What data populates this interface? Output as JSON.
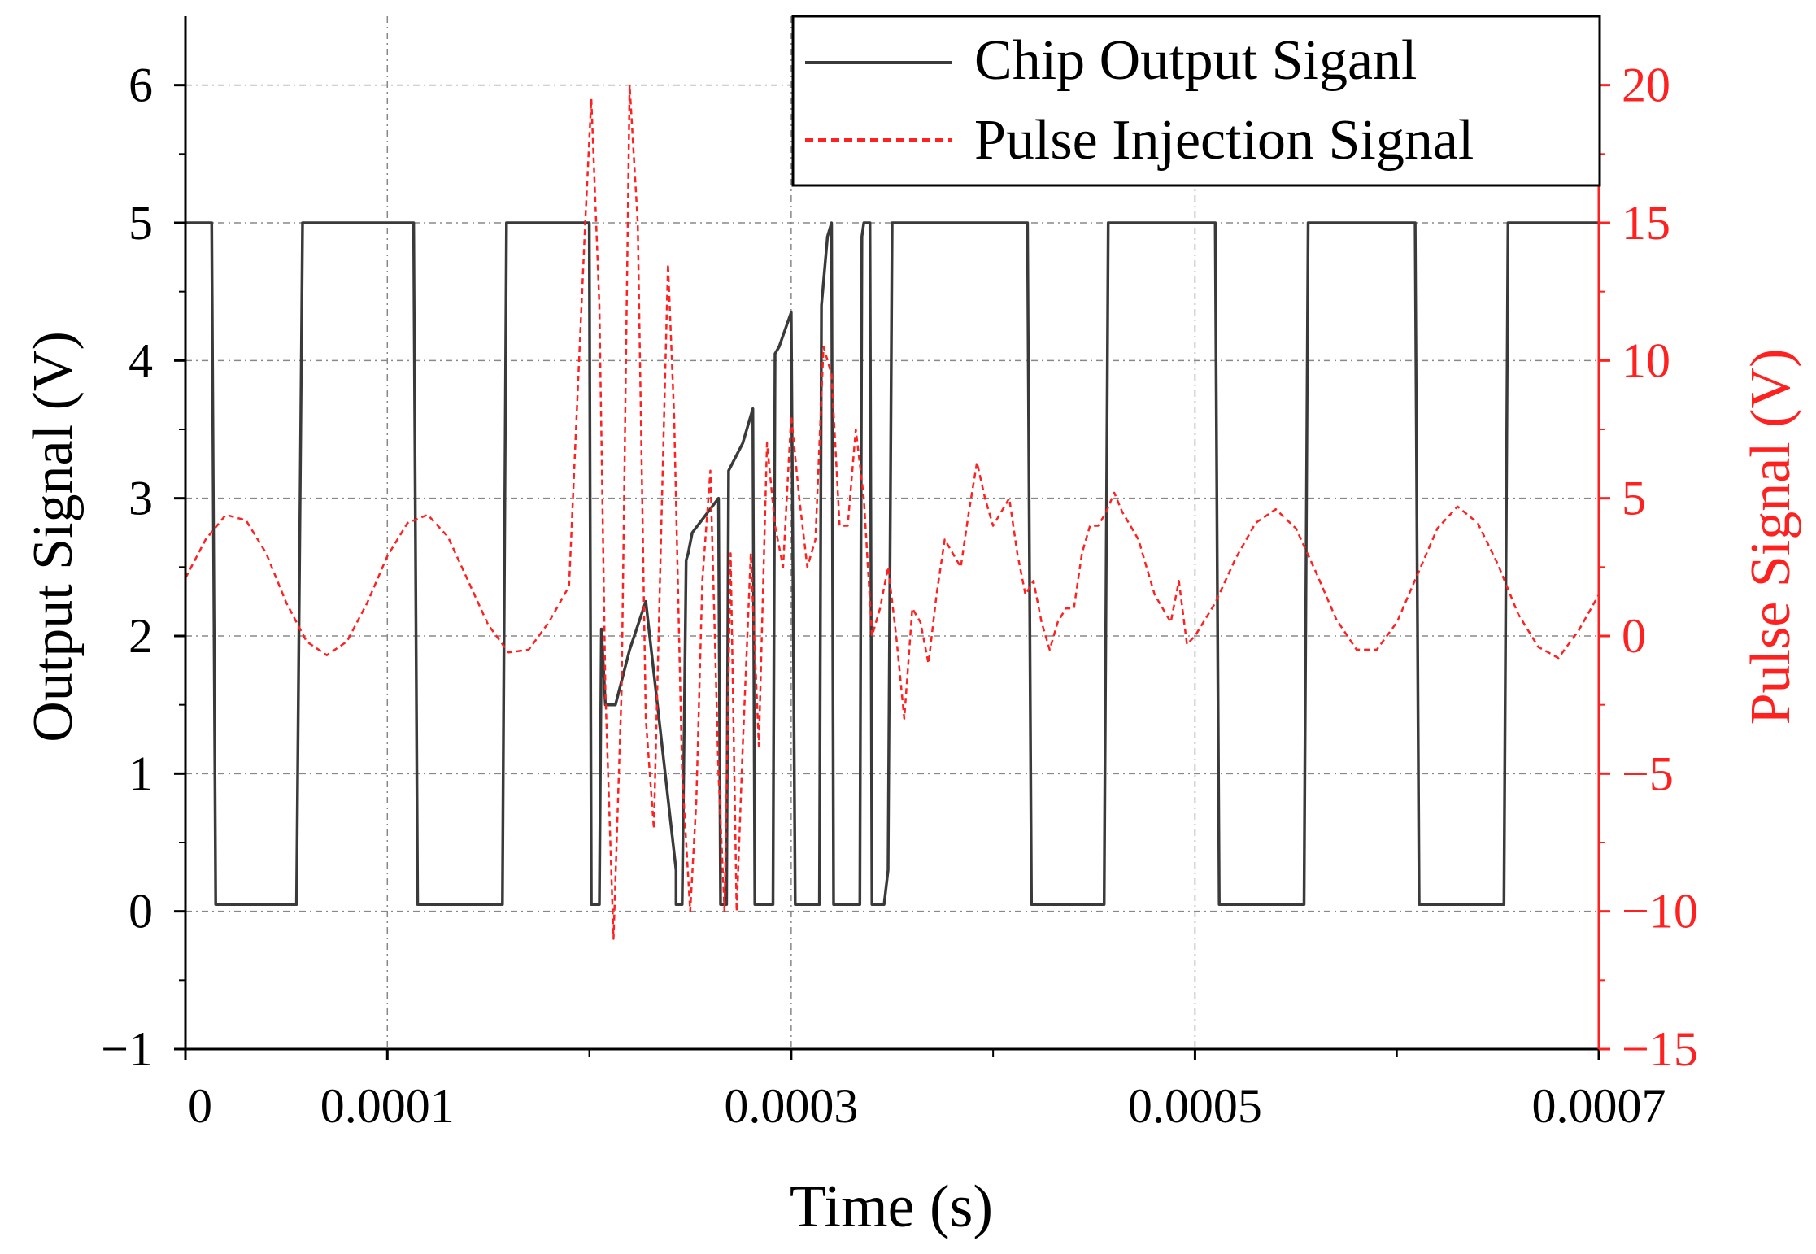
{
  "chart_data": {
    "type": "line",
    "title": "",
    "xlabel": "Time (s)",
    "ylabel_left": "Output Signal (V)",
    "ylabel_right": "Pulse Signal (V)",
    "xlim": [
      0,
      0.0007
    ],
    "ylim_left": [
      -1,
      6.5
    ],
    "ylim_right": [
      -15,
      22.5
    ],
    "x_ticks": [
      0,
      0.0001,
      0.0003,
      0.0005,
      0.0007
    ],
    "x_tick_labels": [
      "0",
      "0.0001",
      "0.0003",
      "0.0005",
      "0.0007"
    ],
    "x_minor_ticks": [
      0.0002,
      0.0004,
      0.0006
    ],
    "y_left_ticks": [
      -1,
      0,
      1,
      2,
      3,
      4,
      5,
      6
    ],
    "y_left_tick_labels": [
      "−1",
      "0",
      "1",
      "2",
      "3",
      "4",
      "5",
      "6"
    ],
    "y_right_ticks": [
      -15,
      -10,
      -5,
      0,
      5,
      10,
      15,
      20
    ],
    "y_right_tick_labels": [
      "−15",
      "−10",
      "−5",
      "0",
      "5",
      "10",
      "15",
      "20"
    ],
    "grid": true,
    "legend_position": "top-right",
    "colors": {
      "left_axis": "#000000",
      "right_axis": "#ff2020",
      "output_line": "#3a3a3a",
      "pulse_line": "#ff2020",
      "grid": "#888888"
    },
    "series": [
      {
        "name": "Chip Output Siganl",
        "axis": "left",
        "style": "solid",
        "x": [
          0,
          1.3e-05,
          1.5e-05,
          5.5e-05,
          5.8e-05,
          0.000113,
          0.000115,
          0.000157,
          0.000159,
          0.0002,
          0.000201,
          0.000205,
          0.000206,
          0.000208,
          0.00021,
          0.000213,
          0.00022,
          0.000228,
          0.000243,
          0.000243,
          0.000246,
          0.000248,
          0.000249,
          0.000251,
          0.000264,
          0.000265,
          0.000268,
          0.000269,
          0.000276,
          0.000281,
          0.000282,
          0.000284,
          0.000291,
          0.000292,
          0.000294,
          0.0003,
          0.000302,
          0.000303,
          0.000314,
          0.000315,
          0.000318,
          0.00032,
          0.000321,
          0.000334,
          0.000335,
          0.000336,
          0.000339,
          0.00034,
          0.000342,
          0.000344,
          0.000346,
          0.000348,
          0.00035,
          0.000351,
          0.000352,
          0.000354,
          0.000417,
          0.000419,
          0.000455,
          0.000457,
          0.00051,
          0.000512,
          0.000554,
          0.000556,
          0.000609,
          0.000611,
          0.000653,
          0.000655,
          0.0007
        ],
        "values": [
          5,
          5,
          0.05,
          0.05,
          5,
          5,
          0.05,
          0.05,
          5,
          5,
          0.05,
          0.05,
          2.05,
          1.5,
          1.5,
          1.5,
          1.9,
          2.25,
          0.3,
          0.05,
          0.05,
          2.55,
          2.6,
          2.75,
          3.0,
          0.05,
          0.05,
          3.2,
          3.4,
          3.65,
          0.05,
          0.05,
          0.05,
          4.05,
          4.1,
          4.35,
          0.05,
          0.05,
          0.05,
          4.4,
          4.9,
          5,
          0.05,
          0.05,
          4.9,
          5,
          5,
          0.05,
          0.05,
          0.05,
          0.05,
          0.3,
          5,
          5,
          5,
          5,
          5,
          0.05,
          0.05,
          5,
          5,
          0.05,
          0.05,
          5,
          5,
          0.05,
          0.05,
          5,
          5
        ]
      },
      {
        "name": "Pulse Injection Signal",
        "axis": "right",
        "style": "dashed",
        "x": [
          0,
          1e-05,
          2e-05,
          3e-05,
          4e-05,
          5e-05,
          6e-05,
          7e-05,
          8e-05,
          9e-05,
          0.0001,
          0.00011,
          0.00012,
          0.00013,
          0.00014,
          0.00015,
          0.00016,
          0.00017,
          0.00018,
          0.00019,
          0.000198,
          0.000201,
          0.000205,
          0.000208,
          0.000212,
          0.000216,
          0.00022,
          0.000224,
          0.000228,
          0.000232,
          0.000236,
          0.000239,
          0.000242,
          0.000246,
          0.00025,
          0.000253,
          0.000256,
          0.00026,
          0.000264,
          0.000267,
          0.00027,
          0.000273,
          0.000276,
          0.00028,
          0.000284,
          0.000288,
          0.000292,
          0.000296,
          0.0003,
          0.000304,
          0.000308,
          0.000312,
          0.000316,
          0.00032,
          0.000324,
          0.000328,
          0.000332,
          0.000336,
          0.00034,
          0.000344,
          0.000348,
          0.000352,
          0.000356,
          0.00036,
          0.000364,
          0.000368,
          0.000372,
          0.000376,
          0.00038,
          0.000384,
          0.000388,
          0.000392,
          0.000396,
          0.0004,
          0.000404,
          0.000408,
          0.000412,
          0.000416,
          0.00042,
          0.000424,
          0.000428,
          0.000432,
          0.000436,
          0.00044,
          0.000444,
          0.000448,
          0.000452,
          0.000456,
          0.00046,
          0.000464,
          0.000468,
          0.000472,
          0.000476,
          0.00048,
          0.000484,
          0.000488,
          0.000492,
          0.000496,
          0.0005,
          0.00051,
          0.00052,
          0.00053,
          0.00054,
          0.00055,
          0.00056,
          0.00057,
          0.00058,
          0.00059,
          0.0006,
          0.00061,
          0.00062,
          0.00063,
          0.00064,
          0.00065,
          0.00066,
          0.00067,
          0.00068,
          0.00069,
          0.0007
        ],
        "values": [
          2.1,
          3.5,
          4.4,
          4.2,
          3.0,
          1.2,
          -0.2,
          -0.7,
          -0.2,
          1.2,
          2.9,
          4.1,
          4.4,
          3.6,
          2.0,
          0.4,
          -0.6,
          -0.5,
          0.5,
          1.8,
          15.0,
          19.5,
          12.0,
          -2.0,
          -11.0,
          -2.0,
          20.0,
          15.0,
          -3.0,
          -7.0,
          5.0,
          13.5,
          8.0,
          -5.0,
          -10.0,
          -6.0,
          2.0,
          6.0,
          -5.0,
          -10.0,
          3.0,
          -10.0,
          -4.0,
          3.0,
          -4.0,
          7.0,
          4.0,
          2.5,
          8.0,
          5.0,
          2.5,
          3.5,
          10.5,
          9.5,
          4.0,
          4.0,
          7.5,
          5.0,
          0.0,
          1.0,
          2.5,
          0.0,
          -3.0,
          1.0,
          0.5,
          -1.0,
          1.5,
          3.5,
          3.0,
          2.5,
          4.5,
          6.3,
          5.0,
          4.0,
          4.5,
          5.0,
          3.0,
          1.5,
          2.0,
          0.5,
          -0.5,
          0.5,
          1.0,
          1.0,
          3.0,
          4.0,
          4.0,
          4.5,
          5.2,
          4.5,
          4.0,
          3.5,
          2.5,
          1.5,
          1.0,
          0.5,
          2.0,
          -0.3,
          0.0,
          1.2,
          2.8,
          4.1,
          4.6,
          3.9,
          2.3,
          0.6,
          -0.5,
          -0.5,
          0.5,
          2.2,
          3.9,
          4.7,
          4.1,
          2.6,
          0.8,
          -0.4,
          -0.8,
          0.2,
          1.5
        ]
      }
    ]
  }
}
